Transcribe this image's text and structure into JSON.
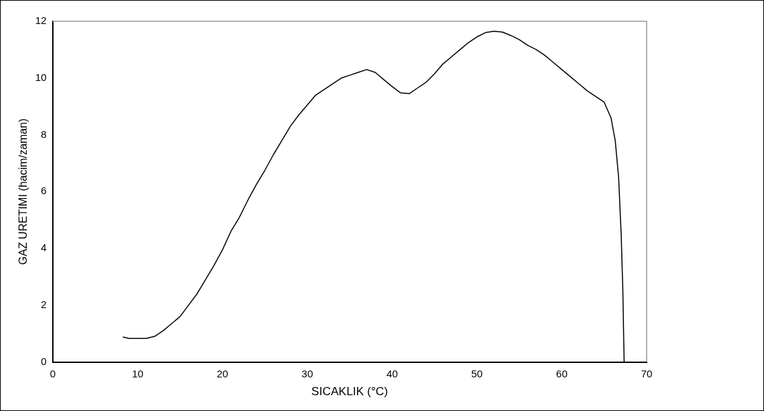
{
  "chart_data": {
    "type": "line",
    "xlabel": "SICAKLIK (°C)",
    "ylabel": "GAZ URETIMI (hacim/zaman)",
    "xlim": [
      0,
      70
    ],
    "xticks": [
      0,
      10,
      20,
      30,
      40,
      50,
      60,
      70
    ],
    "ylim": [
      0,
      12
    ],
    "yticks": [
      0,
      2,
      4,
      6,
      8,
      10,
      12
    ],
    "grid": false,
    "legend": false,
    "marker": "none",
    "line_style": "solid",
    "series": [
      {
        "color": "#000000",
        "x": [
          8.3,
          9,
          11,
          12,
          13,
          14,
          15,
          16,
          17,
          18,
          19,
          20,
          21,
          22,
          23,
          24,
          25,
          26,
          27,
          28,
          29,
          30,
          31,
          32,
          33,
          34,
          35,
          36,
          37,
          38,
          39,
          40,
          41,
          42,
          43,
          44,
          45,
          46,
          47,
          48,
          49,
          50,
          51,
          52,
          53,
          54,
          55,
          56,
          57,
          58,
          59,
          60,
          61,
          62,
          63,
          64,
          65,
          65.8,
          66.3,
          66.7,
          67.0,
          67.2,
          67.3,
          67.35
        ],
        "values": [
          0.88,
          0.83,
          0.83,
          0.9,
          1.1,
          1.35,
          1.6,
          2.0,
          2.4,
          2.9,
          3.4,
          3.95,
          4.6,
          5.1,
          5.7,
          6.25,
          6.75,
          7.3,
          7.8,
          8.3,
          8.7,
          9.05,
          9.4,
          9.6,
          9.8,
          10.0,
          10.1,
          10.2,
          10.3,
          10.2,
          9.95,
          9.7,
          9.48,
          9.45,
          9.65,
          9.85,
          10.15,
          10.5,
          10.75,
          11.0,
          11.25,
          11.45,
          11.6,
          11.65,
          11.62,
          11.5,
          11.35,
          11.15,
          11.0,
          10.8,
          10.55,
          10.3,
          10.05,
          9.8,
          9.55,
          9.35,
          9.15,
          8.6,
          7.8,
          6.5,
          4.5,
          2.5,
          0.8,
          0
        ]
      }
    ]
  }
}
